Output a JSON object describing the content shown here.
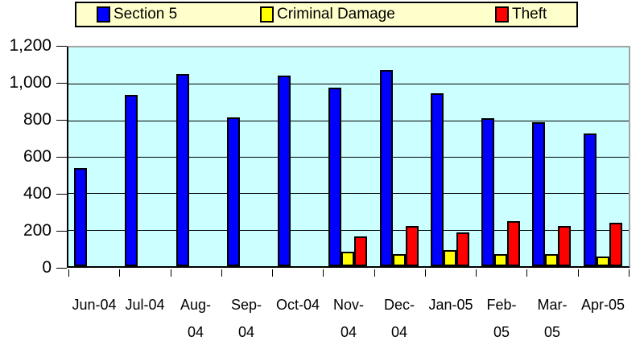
{
  "chart_data": {
    "type": "bar",
    "title": "",
    "categories": [
      "Jun-04",
      "Jul-04",
      "Aug-04",
      "Sep-04",
      "Oct-04",
      "Nov-04",
      "Dec-04",
      "Jan-05",
      "Feb-05",
      "Mar-05",
      "Apr-05"
    ],
    "x_tick_lines": [
      [
        "Jun-04"
      ],
      [
        "Jul-04"
      ],
      [
        "Aug-",
        "04"
      ],
      [
        "Sep-",
        "04"
      ],
      [
        "Oct-04"
      ],
      [
        "Nov-",
        "04"
      ],
      [
        "Dec-",
        "04"
      ],
      [
        "Jan-05"
      ],
      [
        "Feb-",
        "05"
      ],
      [
        "Mar-",
        "05"
      ],
      [
        "Apr-05"
      ]
    ],
    "series": [
      {
        "name": "Section 5",
        "color": "#0000FF",
        "values": [
          540,
          940,
          1055,
          815,
          1045,
          980,
          1075,
          950,
          810,
          790,
          730
        ]
      },
      {
        "name": "Criminal Damage",
        "color": "#FFFF00",
        "values": [
          null,
          null,
          null,
          null,
          null,
          80,
          65,
          90,
          65,
          65,
          55
        ]
      },
      {
        "name": "Theft",
        "color": "#FF0000",
        "values": [
          null,
          null,
          null,
          null,
          null,
          165,
          220,
          185,
          245,
          220,
          240
        ]
      }
    ],
    "ylim": [
      0,
      1200
    ],
    "ytick_step": 200,
    "y_tick_labels": [
      "0",
      "200",
      "400",
      "600",
      "800",
      "1,000",
      "1,200"
    ],
    "grid": true,
    "legend_position": "top",
    "colors": {
      "page_bg": "#FFFFFF",
      "plot_bg": "#CCFFFF",
      "legend_bg": "#FFFFCC",
      "gridline": "#000000",
      "plot_border": "#A3A3A3",
      "axis": "#000000",
      "text": "#000000"
    }
  }
}
